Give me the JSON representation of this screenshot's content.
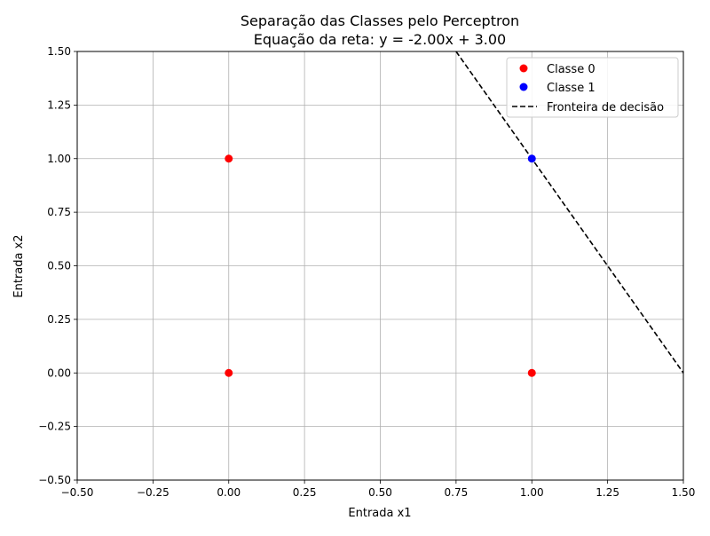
{
  "chart_data": {
    "type": "scatter",
    "title": "Separação das Classes pelo Perceptron",
    "subtitle": "Equação da reta: y = -2.00x + 3.00",
    "xlabel": "Entrada x1",
    "ylabel": "Entrada x2",
    "xlim": [
      -0.5,
      1.5
    ],
    "ylim": [
      -0.5,
      1.5
    ],
    "xticks": [
      -0.5,
      -0.25,
      0.0,
      0.25,
      0.5,
      0.75,
      1.0,
      1.25,
      1.5
    ],
    "xtick_labels": [
      "−0.50",
      "−0.25",
      "0.00",
      "0.25",
      "0.50",
      "0.75",
      "1.00",
      "1.25",
      "1.50"
    ],
    "yticks": [
      -0.5,
      -0.25,
      0.0,
      0.25,
      0.5,
      0.75,
      1.0,
      1.25,
      1.5
    ],
    "ytick_labels": [
      "−0.50",
      "−0.25",
      "0.00",
      "0.25",
      "0.50",
      "0.75",
      "1.00",
      "1.25",
      "1.50"
    ],
    "grid": true,
    "legend_position": "top-right",
    "series": [
      {
        "name": "Classe 0",
        "kind": "scatter",
        "color": "#ff0000",
        "points": [
          [
            0,
            0
          ],
          [
            0,
            1
          ],
          [
            1,
            0
          ]
        ]
      },
      {
        "name": "Classe 1",
        "kind": "scatter",
        "color": "#0000ff",
        "points": [
          [
            1,
            1
          ]
        ]
      },
      {
        "name": "Fronteira de decisão",
        "kind": "line",
        "color": "#000000",
        "dashed": true,
        "slope": -2.0,
        "intercept": 3.0
      }
    ]
  }
}
